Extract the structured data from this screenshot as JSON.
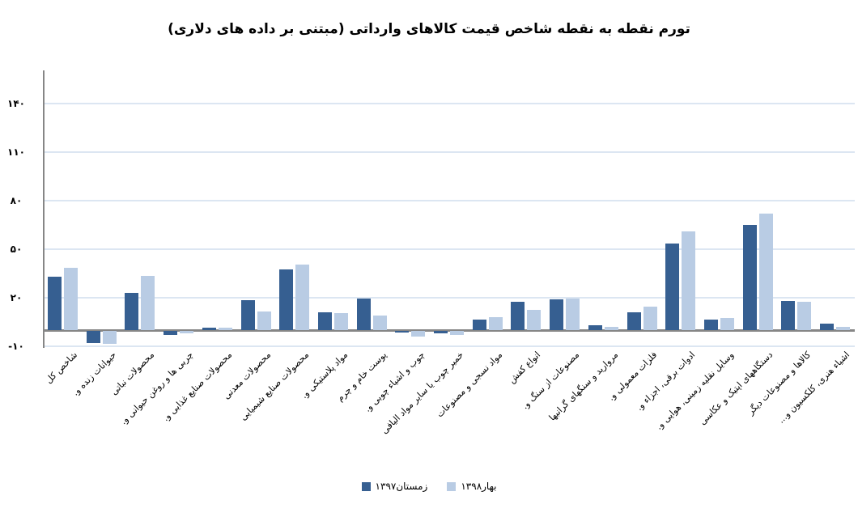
{
  "chart_data": {
    "type": "bar",
    "title": "تورم نقطه به نقطه شاخص قیمت کالاهای وارداتی (مبتنی بر داده های دلاری)",
    "xlabel": "",
    "ylabel": "",
    "ylim": [
      -10,
      160
    ],
    "yticks": [
      -10,
      20,
      50,
      80,
      110,
      140
    ],
    "ytick_labels": [
      "-۱۰",
      "۲۰",
      "۵۰",
      "۸۰",
      "۱۱۰",
      "۱۴۰"
    ],
    "grid": true,
    "legend_position": "bottom",
    "categories": [
      "شاخص کل",
      "حیوانات زنده و.",
      "محصولات نباتی",
      "چربی ها و روغن حیوانی و.",
      "محصولات صنایع غذایی و.",
      "محصولات معدنی",
      "محصولات صنایع شیمیایی",
      "مواد پلاستیکی و.",
      "پوست خام و چرم",
      "چوب و اشیاء چوبی و.",
      "خمیر چوب یا سایر مواد الیافی",
      "مواد نسجی و مصنوعات",
      "انواع کفش",
      "مصنوعات از سنگ و.",
      "مروارید و سنگهای گرانبها",
      "فلزات معمولی و.",
      "ادوات برقی، اجزاء و.",
      "وسایل نقلیه زمینی، هوایی و.",
      "دستگاههای اپتیک و عکاسی",
      "کالاها و مصنوعات دیگر",
      "اشیاء هنری، کلکسیون و..."
    ],
    "series": [
      {
        "name": "زمستان۱۳۹۷",
        "color": "#365f91",
        "values": [
          33,
          -7.5,
          23,
          -2.5,
          1.3,
          18.7,
          37.5,
          11.2,
          19.7,
          -1,
          -1.3,
          6.3,
          17.7,
          19.2,
          3,
          11.2,
          53.7,
          6.7,
          65.2,
          18.2,
          4.2
        ]
      },
      {
        "name": "بهار۱۳۹۸",
        "color": "#b9cce4",
        "values": [
          38.5,
          -8,
          33.5,
          -1.5,
          1.3,
          11.7,
          40.5,
          10.7,
          9.2,
          -3.6,
          -2.4,
          7.8,
          12.7,
          19.7,
          2,
          14.7,
          61.2,
          7.7,
          72.2,
          17.7,
          2.2
        ]
      }
    ]
  },
  "legend": {
    "items": [
      {
        "label": "بهار۱۳۹۸",
        "color": "#b9cce4"
      },
      {
        "label": "زمستان۱۳۹۷",
        "color": "#365f91"
      }
    ]
  }
}
